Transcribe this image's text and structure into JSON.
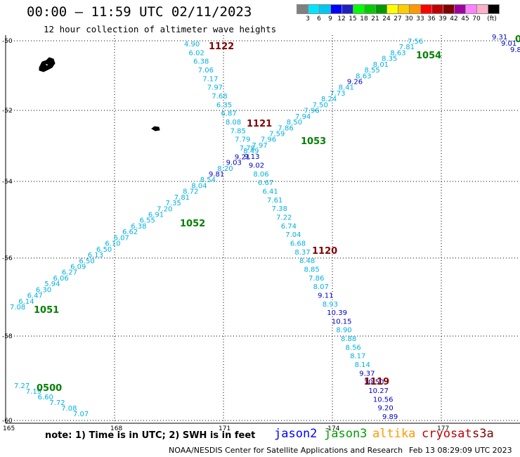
{
  "header": {
    "title": "00:00 – 11:59 UTC 02/11/2023",
    "subtitle": "12 hour collection of altimeter wave heights"
  },
  "scale": {
    "colors": [
      "#808080",
      "#00e5ff",
      "#00c8f0",
      "#0000ff",
      "#2020c0",
      "#00ff00",
      "#00cc00",
      "#009a00",
      "#ffff00",
      "#ffcc00",
      "#ff9900",
      "#ff0000",
      "#c00000",
      "#800000",
      "#a000a0",
      "#ff80ff",
      "#ffb0c8",
      "#000000"
    ],
    "labels": [
      "3",
      "6",
      "9",
      "12",
      "15",
      "18",
      "21",
      "24",
      "27",
      "30",
      "33",
      "36",
      "39",
      "42",
      "45",
      "70",
      "(ft)"
    ]
  },
  "axes": {
    "lat_labels": [
      "-50",
      "-52",
      "-54",
      "-56",
      "-58",
      "-60"
    ],
    "lon_labels": [
      "165",
      "168",
      "171",
      "-174",
      "177"
    ]
  },
  "tracks": [
    {
      "name": "1051",
      "color": "#008000",
      "points": [
        {
          "v": "7.08",
          "c": "#00b0e0"
        },
        {
          "v": "6.14",
          "c": "#00b0e0"
        },
        {
          "v": "6.47",
          "c": "#00b0e0"
        },
        {
          "v": "6.30",
          "c": "#00b0e0"
        },
        {
          "v": "5.94",
          "c": "#00b0e0"
        },
        {
          "v": "6.06",
          "c": "#00b0e0"
        },
        {
          "v": "6.27",
          "c": "#00b0e0"
        },
        {
          "v": "6.09",
          "c": "#00b0e0"
        },
        {
          "v": "6.50",
          "c": "#00b0e0"
        },
        {
          "v": "6.13",
          "c": "#00b0e0"
        },
        {
          "v": "6.50",
          "c": "#00b0e0"
        },
        {
          "v": "6.10",
          "c": "#00b0e0"
        },
        {
          "v": "6.07",
          "c": "#00b0e0"
        },
        {
          "v": "6.62",
          "c": "#00b0e0"
        },
        {
          "v": "6.38",
          "c": "#00b0e0"
        },
        {
          "v": "6.55",
          "c": "#00b0e0"
        },
        {
          "v": "6.91",
          "c": "#00b0e0"
        },
        {
          "v": "7.20",
          "c": "#00b0e0"
        },
        {
          "v": "7.35",
          "c": "#00b0e0"
        },
        {
          "v": "7.81",
          "c": "#00b0e0"
        },
        {
          "v": "8.72",
          "c": "#00b0e0"
        },
        {
          "v": "8.04",
          "c": "#00b0e0"
        },
        {
          "v": "8.54",
          "c": "#00b0e0"
        },
        {
          "v": "9.81",
          "c": "#0000c0"
        },
        {
          "v": "8.20",
          "c": "#00b0e0"
        },
        {
          "v": "9.03",
          "c": "#0000c0"
        },
        {
          "v": "9.21",
          "c": "#0000c0"
        },
        {
          "v": "8.49",
          "c": "#00b0e0"
        },
        {
          "v": "7.97",
          "c": "#00b0e0"
        },
        {
          "v": "7.96",
          "c": "#00b0e0"
        },
        {
          "v": "7.59",
          "c": "#00b0e0"
        },
        {
          "v": "7.86",
          "c": "#00b0e0"
        },
        {
          "v": "8.50",
          "c": "#00b0e0"
        },
        {
          "v": "7.94",
          "c": "#00b0e0"
        },
        {
          "v": "7.96",
          "c": "#00b0e0"
        },
        {
          "v": "7.50",
          "c": "#00b0e0"
        },
        {
          "v": "8.24",
          "c": "#00b0e0"
        },
        {
          "v": "7.73",
          "c": "#00b0e0"
        },
        {
          "v": "8.41",
          "c": "#00b0e0"
        },
        {
          "v": "9.26",
          "c": "#0000c0"
        },
        {
          "v": "8.63",
          "c": "#00b0e0"
        },
        {
          "v": "8.55",
          "c": "#00b0e0"
        },
        {
          "v": "8.01",
          "c": "#00b0e0"
        },
        {
          "v": "8.35",
          "c": "#00b0e0"
        },
        {
          "v": "8.63",
          "c": "#00b0e0"
        },
        {
          "v": "7.81",
          "c": "#00b0e0"
        },
        {
          "v": "7.56",
          "c": "#00b0e0"
        }
      ]
    },
    {
      "name": "1122",
      "color": "#800000",
      "points": [
        {
          "v": "4.90",
          "c": "#00b0e0"
        },
        {
          "v": "6.02",
          "c": "#00b0e0"
        },
        {
          "v": "6.38",
          "c": "#00b0e0"
        },
        {
          "v": "7.06",
          "c": "#00b0e0"
        },
        {
          "v": "7.17",
          "c": "#00b0e0"
        },
        {
          "v": "7.97",
          "c": "#00b0e0"
        },
        {
          "v": "7.68",
          "c": "#00b0e0"
        },
        {
          "v": "6.35",
          "c": "#00b0e0"
        },
        {
          "v": "6.87",
          "c": "#00b0e0"
        },
        {
          "v": "8.08",
          "c": "#00b0e0"
        },
        {
          "v": "7.85",
          "c": "#00b0e0"
        },
        {
          "v": "7.79",
          "c": "#00b0e0"
        },
        {
          "v": "7.78",
          "c": "#00b0e0"
        },
        {
          "v": "9.13",
          "c": "#0000c0"
        },
        {
          "v": "9.02",
          "c": "#0000c0"
        },
        {
          "v": "8.06",
          "c": "#00b0e0"
        },
        {
          "v": "6.67",
          "c": "#00b0e0"
        },
        {
          "v": "6.41",
          "c": "#00b0e0"
        },
        {
          "v": "7.61",
          "c": "#00b0e0"
        },
        {
          "v": "7.38",
          "c": "#00b0e0"
        },
        {
          "v": "7.22",
          "c": "#00b0e0"
        },
        {
          "v": "6.74",
          "c": "#00b0e0"
        },
        {
          "v": "7.04",
          "c": "#00b0e0"
        },
        {
          "v": "6.68",
          "c": "#00b0e0"
        },
        {
          "v": "8.37",
          "c": "#00b0e0"
        },
        {
          "v": "8.48",
          "c": "#00b0e0"
        },
        {
          "v": "8.85",
          "c": "#00b0e0"
        },
        {
          "v": "7.86",
          "c": "#00b0e0"
        },
        {
          "v": "8.07",
          "c": "#00b0e0"
        },
        {
          "v": "9.11",
          "c": "#0000c0"
        },
        {
          "v": "8.93",
          "c": "#00b0e0"
        },
        {
          "v": "10.39",
          "c": "#0000c0"
        },
        {
          "v": "10.15",
          "c": "#0000c0"
        },
        {
          "v": "8.90",
          "c": "#00b0e0"
        },
        {
          "v": "8.88",
          "c": "#00b0e0"
        },
        {
          "v": "8.56",
          "c": "#00b0e0"
        },
        {
          "v": "8.17",
          "c": "#00b0e0"
        },
        {
          "v": "8.14",
          "c": "#00b0e0"
        },
        {
          "v": "9.37",
          "c": "#0000c0"
        },
        {
          "v": "10.50",
          "c": "#0000c0"
        },
        {
          "v": "10.27",
          "c": "#0000c0"
        },
        {
          "v": "10.56",
          "c": "#0000c0"
        },
        {
          "v": "9.20",
          "c": "#0000c0"
        },
        {
          "v": "9.89",
          "c": "#0000c0"
        }
      ]
    },
    {
      "name": "0500",
      "color": "#008000",
      "points": [
        {
          "v": "7.27",
          "c": "#00b0e0"
        },
        {
          "v": "7.19",
          "c": "#00b0e0"
        },
        {
          "v": "6.60",
          "c": "#00b0e0"
        },
        {
          "v": "7.72",
          "c": "#00b0e0"
        },
        {
          "v": "7.08",
          "c": "#00b0e0"
        },
        {
          "v": "7.07",
          "c": "#00b0e0"
        }
      ]
    },
    {
      "name": "",
      "color": "#0000c0",
      "points": [
        {
          "v": "9.31",
          "c": "#0000c0"
        },
        {
          "v": "9.01",
          "c": "#0000c0"
        },
        {
          "v": "9.8",
          "c": "#0000c0"
        }
      ]
    }
  ],
  "time_labels": [
    {
      "text": "1122",
      "color": "#800000"
    },
    {
      "text": "1121",
      "color": "#800000"
    },
    {
      "text": "1120",
      "color": "#800000"
    },
    {
      "text": "1119",
      "color": "#800000"
    },
    {
      "text": "1054",
      "color": "#008000"
    },
    {
      "text": "1053",
      "color": "#008000"
    },
    {
      "text": "1052",
      "color": "#008000"
    },
    {
      "text": "1051",
      "color": "#008000"
    },
    {
      "text": "0500",
      "color": "#008000"
    },
    {
      "text": "0",
      "color": "#008000"
    }
  ],
  "note": "note: 1) Time is in UTC; 2) SWH is in feet",
  "satellites": [
    {
      "name": "jason2",
      "color": "#0000ff"
    },
    {
      "name": "jason3",
      "color": "#00a000"
    },
    {
      "name": "altika",
      "color": "#ff9900"
    },
    {
      "name": "cryosat",
      "color": "#c00000"
    },
    {
      "name": "s3a",
      "color": "#800000"
    }
  ],
  "footer": {
    "agency": "NOAA/NESDIS Center for Satellite Applications and Research",
    "generated": "Feb 13 08:29:09 UTC 2023"
  }
}
